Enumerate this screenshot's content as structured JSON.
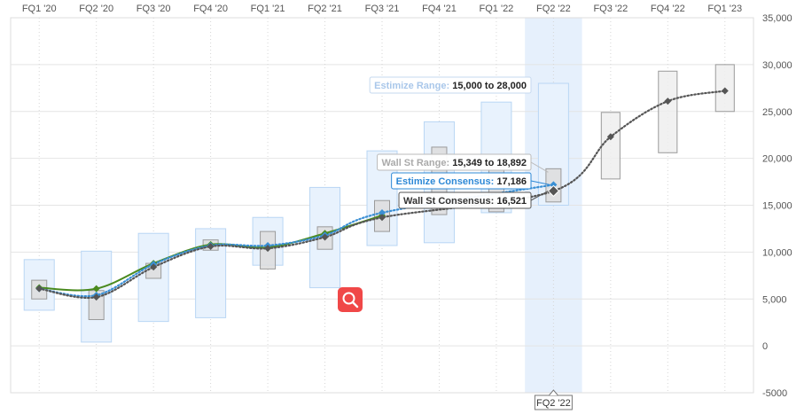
{
  "chart_data": {
    "type": "line",
    "categories": [
      "FQ1 '20",
      "FQ2 '20",
      "FQ3 '20",
      "FQ4 '20",
      "FQ1 '21",
      "FQ2 '21",
      "FQ3 '21",
      "FQ4 '21",
      "FQ1 '22",
      "FQ2 '22",
      "FQ3 '22",
      "FQ4 '22",
      "FQ1 '23"
    ],
    "ylim": [
      -5000,
      35000
    ],
    "yticks": [
      -5000,
      0,
      5000,
      10000,
      15000,
      20000,
      25000,
      30000,
      35000
    ],
    "ytick_labels": [
      "-5000",
      "0",
      "5,000",
      "10,000",
      "15,000",
      "20,000",
      "25,000",
      "30,000",
      "35,000"
    ],
    "highlight_category": "FQ2 '22",
    "estimize_range": [
      [
        3800,
        9200
      ],
      [
        400,
        10100
      ],
      [
        2600,
        12000
      ],
      [
        3000,
        12500
      ],
      [
        8600,
        13700
      ],
      [
        6200,
        16900
      ],
      [
        10700,
        20800
      ],
      [
        11000,
        23900
      ],
      [
        14200,
        26000
      ],
      [
        15000,
        28000
      ],
      null,
      null,
      null
    ],
    "wallst_range": [
      [
        5000,
        7000
      ],
      [
        2800,
        5900
      ],
      [
        7200,
        8800
      ],
      [
        10200,
        11300
      ],
      [
        8200,
        12200
      ],
      [
        10300,
        12700
      ],
      [
        12200,
        15500
      ],
      [
        14000,
        21200
      ],
      [
        14300,
        19000
      ],
      [
        15349,
        18892
      ],
      [
        17800,
        24900
      ],
      [
        20600,
        29300
      ],
      [
        25000,
        30000
      ]
    ],
    "series": [
      {
        "values": [
          6200,
          6100,
          8800,
          10800,
          10500,
          12000,
          13900,
          null,
          null,
          null,
          null,
          null,
          null
        ],
        "color": "#4a8a1e"
      },
      {
        "values": [
          6100,
          5400,
          8700,
          10700,
          10700,
          11800,
          14200,
          null,
          null,
          17186,
          null,
          null,
          null
        ],
        "color": "#3a8fd4"
      },
      {
        "values": [
          6100,
          5200,
          8400,
          10600,
          10400,
          11600,
          13700,
          null,
          null,
          16521,
          22300,
          26100,
          27200
        ],
        "color": "#555555"
      }
    ],
    "tooltips": {
      "estimize_range": {
        "label": "Estimize Range:",
        "value": "15,000 to 28,000"
      },
      "wallst_range": {
        "label": "Wall St Range:",
        "value": "15,349 to 18,892"
      },
      "estimize_consensus": {
        "label": "Estimize Consensus:",
        "value": "17,186"
      },
      "wallst_consensus": {
        "label": "Wall St Consensus:",
        "value": "16,521"
      }
    },
    "x_crosshair_label": "FQ2 '22"
  },
  "colors": {
    "estimize_box_fill": "#e8f2fd",
    "estimize_box_stroke": "#b9d6f4",
    "wallst_box_fill": "#dddddd",
    "wallst_box_stroke": "#9a9a9a",
    "highlight_band": "#e6f0fc",
    "grid": "#e4e4e4",
    "zoom_button": "#f04848"
  },
  "icons": {
    "zoom": "magnifier-icon"
  }
}
